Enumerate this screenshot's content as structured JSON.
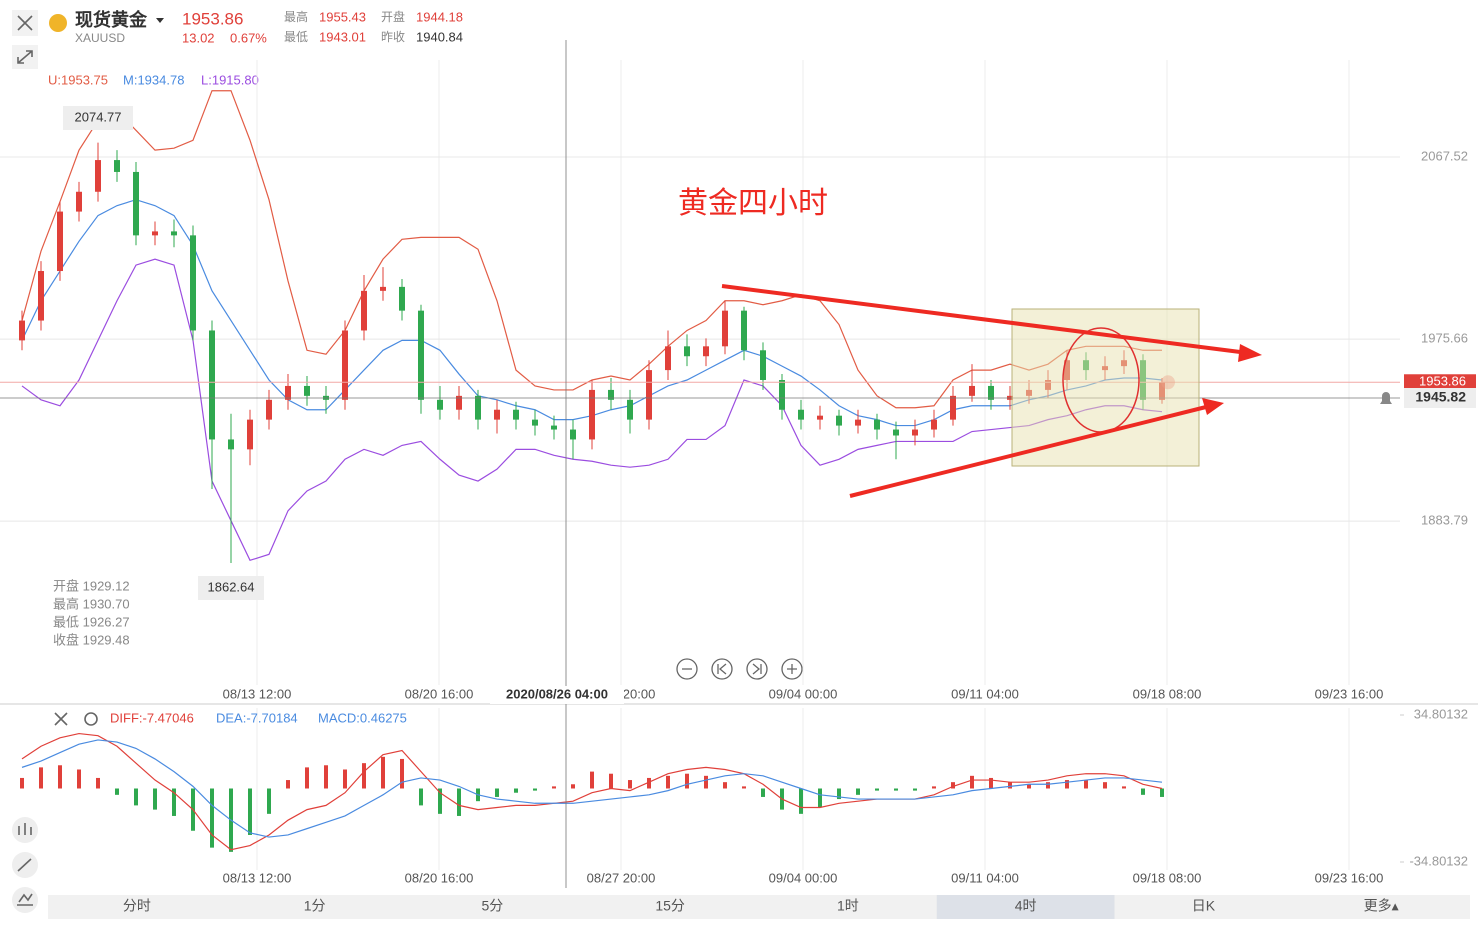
{
  "header": {
    "name": "现货黄金",
    "symbol": "XAUUSD",
    "price": "1953.86",
    "change": "13.02",
    "change_pct": "0.67%",
    "high_label": "最高",
    "high": "1955.43",
    "open_label": "开盘",
    "open": "1944.18",
    "low_label": "最低",
    "low": "1943.01",
    "prev_label": "昨收",
    "prev": "1940.84"
  },
  "bands_legend": {
    "upper": "U:1953.75",
    "middle": "M:1934.78",
    "lower": "L:1915.80"
  },
  "info_box": [
    "开盘 1929.12",
    "最高 1930.70",
    "最低 1926.27",
    "收盘 1929.48"
  ],
  "crosshair": {
    "time": "2020/08/26 04:00",
    "price": "1945.82"
  },
  "xtick_labels": [
    "08/13 12:00",
    "08/20 16:00",
    "08/27 20:00",
    "09/04 00:00",
    "09/11 04:00",
    "09/18 08:00",
    "09/23 16:00"
  ],
  "tabs": [
    "分时",
    "1分",
    "5分",
    "15分",
    "1时",
    "4时",
    "日K",
    "更多▴"
  ],
  "chart_data": [
    {
      "type": "candlestick",
      "annotation": "黄金四小时",
      "max_label": "2074.77",
      "min_label": "1862.64",
      "last_label": "1953.86",
      "ylim": [
        1803.6,
        2116.5
      ],
      "yticks": [
        1883.79,
        1975.66,
        2067.52
      ],
      "grid": true,
      "up_color": "#e0403a",
      "down_color": "#2fa84f",
      "open": [
        1975,
        1985,
        2010,
        2040,
        2050,
        2066,
        2060,
        2028,
        2030,
        2028,
        1980,
        1925,
        1920,
        1935,
        1945,
        1952,
        1947,
        1945,
        1980,
        2000,
        2002,
        1990,
        1945,
        1940,
        1947,
        1935,
        1940,
        1935,
        1932,
        1930,
        1925,
        1950,
        1945,
        1935,
        1960,
        1972,
        1967,
        1972,
        1990,
        1970,
        1955,
        1940,
        1935,
        1937,
        1932,
        1935,
        1930,
        1927,
        1930,
        1935,
        1947,
        1952,
        1945,
        1947,
        1950,
        1955,
        1965,
        1960,
        1962,
        1965,
        1945
      ],
      "high": [
        1990,
        2015,
        2045,
        2055,
        2074.77,
        2071,
        2065,
        2035,
        2036,
        2033,
        1985,
        1938,
        1940,
        1950,
        1958,
        1957,
        1952,
        1985,
        2008,
        2012,
        2006,
        1993,
        1952,
        1952,
        1950,
        1945,
        1944,
        1940,
        1937,
        1935,
        1955,
        1956,
        1950,
        1965,
        1980,
        1978,
        1976,
        1995,
        1992,
        1974,
        1958,
        1945,
        1942,
        1940,
        1940,
        1938,
        1934,
        1935,
        1940,
        1952,
        1963,
        1955,
        1952,
        1955,
        1960,
        1970,
        1969,
        1967,
        1970,
        1968,
        1956
      ],
      "low": [
        1970,
        1980,
        2005,
        2035,
        2045,
        2055,
        2023,
        2023,
        2022,
        1975,
        1900,
        1862.64,
        1912,
        1930,
        1940,
        1942,
        1938,
        1940,
        1975,
        1995,
        1985,
        1938,
        1935,
        1935,
        1930,
        1928,
        1930,
        1927,
        1925,
        1915,
        1920,
        1940,
        1928,
        1930,
        1955,
        1962,
        1962,
        1968,
        1965,
        1950,
        1935,
        1930,
        1930,
        1927,
        1928,
        1925,
        1915,
        1922,
        1926,
        1932,
        1944,
        1940,
        1940,
        1943,
        1946,
        1950,
        1955,
        1955,
        1958,
        1940,
        1943
      ],
      "close": [
        1985,
        2010,
        2040,
        2050,
        2066,
        2060,
        2028,
        2030,
        2028,
        1980,
        1925,
        1920,
        1935,
        1945,
        1952,
        1947,
        1945,
        1980,
        2000,
        2002,
        1990,
        1945,
        1940,
        1947,
        1935,
        1940,
        1935,
        1932,
        1930,
        1925,
        1950,
        1945,
        1935,
        1960,
        1972,
        1967,
        1972,
        1990,
        1970,
        1955,
        1940,
        1935,
        1937,
        1932,
        1935,
        1930,
        1927,
        1930,
        1935,
        1947,
        1952,
        1945,
        1947,
        1950,
        1955,
        1965,
        1960,
        1962,
        1965,
        1945,
        1953.86
      ],
      "series": [
        {
          "name": "U",
          "color": "#e25c45",
          "values": [
            1985,
            2020,
            2045,
            2071,
            2086,
            2091,
            2081,
            2071,
            2072,
            2076,
            2101,
            2101,
            2076,
            2046,
            2005,
            1970,
            1968,
            1980,
            2000,
            2016,
            2026,
            2027,
            2027,
            2027,
            2021,
            1995,
            1960,
            1952,
            1950,
            1950,
            1955,
            1957,
            1955,
            1963,
            1972,
            1980,
            1985,
            1995,
            1995,
            1993,
            1995,
            1998,
            1995,
            1983,
            1960,
            1947,
            1941,
            1941,
            1942,
            1955,
            1960,
            1960,
            1963,
            1960,
            1963,
            1970,
            1972,
            1972,
            1972,
            1970,
            1970
          ]
        },
        {
          "name": "M",
          "color": "#4a8be0",
          "values": [
            1975,
            1995,
            2010,
            2025,
            2038,
            2043,
            2046,
            2043,
            2038,
            2023,
            2000,
            1985,
            1970,
            1955,
            1945,
            1940,
            1940,
            1950,
            1960,
            1970,
            1975,
            1975,
            1970,
            1958,
            1947,
            1945,
            1942,
            1940,
            1935,
            1935,
            1937,
            1940,
            1942,
            1947,
            1952,
            1955,
            1960,
            1965,
            1970,
            1967,
            1962,
            1957,
            1950,
            1942,
            1937,
            1935,
            1932,
            1932,
            1935,
            1940,
            1942,
            1942,
            1942,
            1945,
            1947,
            1950,
            1952,
            1955,
            1956,
            1956,
            1955
          ]
        },
        {
          "name": "L",
          "color": "#9b4de0",
          "values": [
            1952,
            1945,
            1942,
            1955,
            1975,
            1995,
            2013,
            2016,
            2013,
            1975,
            1904,
            1884,
            1864,
            1867,
            1889,
            1899,
            1904,
            1915,
            1920,
            1917,
            1922,
            1924,
            1915,
            1907,
            1904,
            1910,
            1920,
            1920,
            1917,
            1915,
            1914,
            1912,
            1911,
            1912,
            1915,
            1925,
            1925,
            1932,
            1955,
            1952,
            1942,
            1922,
            1912,
            1915,
            1920,
            1922,
            1924,
            1924,
            1924,
            1924,
            1929,
            1930,
            1931,
            1932,
            1935,
            1937,
            1940,
            1942,
            1942,
            1940,
            1939
          ]
        }
      ]
    },
    {
      "type": "macd",
      "legend": [
        "DIFF:-7.47046",
        "DEA:-7.70184",
        "MACD:0.46275"
      ],
      "ylim": [
        -34.80132,
        34.80132
      ],
      "yticks": [
        -34.80132,
        34.80132
      ],
      "up_color": "#e0403a",
      "down_color": "#2fa84f",
      "histogram": [
        5,
        10,
        11,
        9,
        5,
        -3,
        -8,
        -10,
        -13,
        -20,
        -28,
        -30,
        -22,
        -12,
        4,
        10,
        11,
        9,
        12,
        15,
        14,
        -8,
        -12,
        -13,
        -6,
        -4,
        -2,
        -1,
        1,
        2,
        8,
        7,
        4,
        5,
        6,
        7,
        6,
        3,
        1,
        -4,
        -10,
        -12,
        -9,
        -5,
        -3,
        -1,
        -1,
        -1,
        1,
        3,
        6,
        5,
        3,
        2,
        3,
        4,
        4,
        3,
        1,
        -3,
        -4
      ],
      "series": [
        {
          "name": "DIFF",
          "color": "#e0403a",
          "values": [
            14,
            20,
            24,
            26,
            25,
            20,
            12,
            4,
            -2,
            -10,
            -22,
            -29,
            -27,
            -22,
            -15,
            -10,
            -8,
            -2,
            8,
            16,
            18,
            8,
            -2,
            -8,
            -10,
            -9,
            -8,
            -8,
            -7,
            -6,
            -2,
            0,
            -1,
            3,
            7,
            9,
            10,
            9,
            7,
            2,
            -5,
            -9,
            -9,
            -7,
            -6,
            -5,
            -5,
            -5,
            -3,
            1,
            4,
            4,
            3,
            3,
            4,
            6,
            7,
            7,
            6,
            2,
            0
          ]
        },
        {
          "name": "DEA",
          "color": "#4a8be0",
          "values": [
            10,
            13,
            17,
            21,
            23,
            22,
            19,
            14,
            8,
            1,
            -8,
            -15,
            -21,
            -23,
            -22,
            -19,
            -16,
            -13,
            -8,
            -3,
            3,
            5,
            4,
            1,
            -3,
            -5,
            -6,
            -7,
            -7,
            -7,
            -6,
            -5,
            -4,
            -3,
            -1,
            2,
            4,
            6,
            7,
            6,
            3,
            0,
            -3,
            -4,
            -5,
            -5,
            -5,
            -5,
            -4,
            -3,
            -1,
            0,
            1,
            2,
            2,
            3,
            4,
            5,
            5,
            4,
            3
          ]
        }
      ]
    }
  ]
}
